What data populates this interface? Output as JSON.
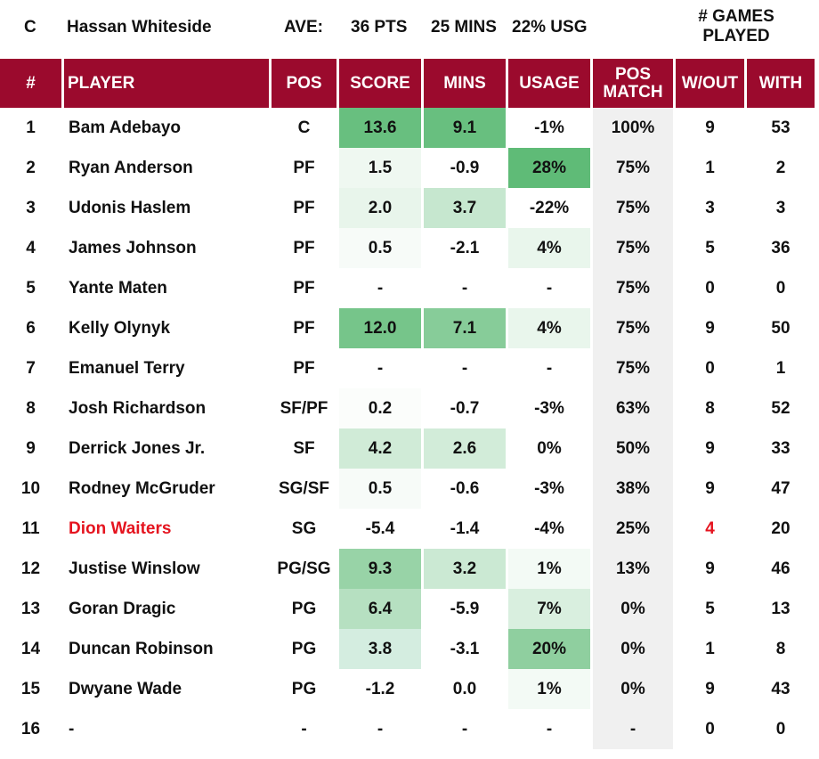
{
  "header": {
    "pos": "C",
    "player": "Hassan Whiteside",
    "ave_label": "AVE:",
    "pts": "36 PTS",
    "mins": "25 MINS",
    "usg": "22% USG",
    "games_played_line1": "# GAMES",
    "games_played_line2": "PLAYED"
  },
  "columns": [
    "#",
    "PLAYER",
    "POS",
    "SCORE",
    "MINS",
    "USAGE",
    "POS MATCH",
    "W/OUT",
    "WITH"
  ],
  "rows": [
    {
      "n": "1",
      "player": "Bam Adebayo",
      "pos": "C",
      "score": "13.6",
      "mins": "9.1",
      "usage": "-1%",
      "pos_match": "100%",
      "wout": "9",
      "with": "53",
      "score_bg": "#68bf7f",
      "mins_bg": "#68bf7f",
      "usage_bg": "",
      "highlight": false
    },
    {
      "n": "2",
      "player": "Ryan Anderson",
      "pos": "PF",
      "score": "1.5",
      "mins": "-0.9",
      "usage": "28%",
      "pos_match": "75%",
      "wout": "1",
      "with": "2",
      "score_bg": "#eff8f1",
      "mins_bg": "",
      "usage_bg": "#5fbb77",
      "highlight": false
    },
    {
      "n": "3",
      "player": "Udonis Haslem",
      "pos": "PF",
      "score": "2.0",
      "mins": "3.7",
      "usage": "-22%",
      "pos_match": "75%",
      "wout": "3",
      "with": "3",
      "score_bg": "#e8f5eb",
      "mins_bg": "#c6e7cf",
      "usage_bg": "",
      "highlight": false
    },
    {
      "n": "4",
      "player": "James Johnson",
      "pos": "PF",
      "score": "0.5",
      "mins": "-2.1",
      "usage": "4%",
      "pos_match": "75%",
      "wout": "5",
      "with": "36",
      "score_bg": "#f7fbf8",
      "mins_bg": "",
      "usage_bg": "#e9f6ec",
      "highlight": false
    },
    {
      "n": "5",
      "player": "Yante Maten",
      "pos": "PF",
      "score": "-",
      "mins": "-",
      "usage": "-",
      "pos_match": "75%",
      "wout": "0",
      "with": "0",
      "score_bg": "",
      "mins_bg": "",
      "usage_bg": "",
      "highlight": false
    },
    {
      "n": "6",
      "player": "Kelly Olynyk",
      "pos": "PF",
      "score": "12.0",
      "mins": "7.1",
      "usage": "4%",
      "pos_match": "75%",
      "wout": "9",
      "with": "50",
      "score_bg": "#76c58a",
      "mins_bg": "#87cc99",
      "usage_bg": "#e9f6ec",
      "highlight": false
    },
    {
      "n": "7",
      "player": "Emanuel Terry",
      "pos": "PF",
      "score": "-",
      "mins": "-",
      "usage": "-",
      "pos_match": "75%",
      "wout": "0",
      "with": "1",
      "score_bg": "",
      "mins_bg": "",
      "usage_bg": "",
      "highlight": false
    },
    {
      "n": "8",
      "player": "Josh Richardson",
      "pos": "SF/PF",
      "score": "0.2",
      "mins": "-0.7",
      "usage": "-3%",
      "pos_match": "63%",
      "wout": "8",
      "with": "52",
      "score_bg": "#fbfdfb",
      "mins_bg": "",
      "usage_bg": "",
      "highlight": false
    },
    {
      "n": "9",
      "player": "Derrick Jones Jr.",
      "pos": "SF",
      "score": "4.2",
      "mins": "2.6",
      "usage": "0%",
      "pos_match": "50%",
      "wout": "9",
      "with": "33",
      "score_bg": "#d0ebd7",
      "mins_bg": "#d2ecd9",
      "usage_bg": "",
      "highlight": false
    },
    {
      "n": "10",
      "player": "Rodney McGruder",
      "pos": "SG/SF",
      "score": "0.5",
      "mins": "-0.6",
      "usage": "-3%",
      "pos_match": "38%",
      "wout": "9",
      "with": "47",
      "score_bg": "#f7fbf8",
      "mins_bg": "",
      "usage_bg": "",
      "highlight": false
    },
    {
      "n": "11",
      "player": "Dion Waiters",
      "pos": "SG",
      "score": "-5.4",
      "mins": "-1.4",
      "usage": "-4%",
      "pos_match": "25%",
      "wout": "4",
      "with": "20",
      "score_bg": "",
      "mins_bg": "",
      "usage_bg": "",
      "highlight": true
    },
    {
      "n": "12",
      "player": "Justise Winslow",
      "pos": "PG/SG",
      "score": "9.3",
      "mins": "3.2",
      "usage": "1%",
      "pos_match": "13%",
      "wout": "9",
      "with": "46",
      "score_bg": "#98d3a7",
      "mins_bg": "#cbe9d3",
      "usage_bg": "#f3faf5",
      "highlight": false
    },
    {
      "n": "13",
      "player": "Goran Dragic",
      "pos": "PG",
      "score": "6.4",
      "mins": "-5.9",
      "usage": "7%",
      "pos_match": "0%",
      "wout": "5",
      "with": "13",
      "score_bg": "#b6e0c1",
      "mins_bg": "",
      "usage_bg": "#d9efdf",
      "highlight": false
    },
    {
      "n": "14",
      "player": "Duncan Robinson",
      "pos": "PG",
      "score": "3.8",
      "mins": "-3.1",
      "usage": "20%",
      "pos_match": "0%",
      "wout": "1",
      "with": "8",
      "score_bg": "#d4ede0",
      "mins_bg": "",
      "usage_bg": "#8fcf9f",
      "highlight": false
    },
    {
      "n": "15",
      "player": "Dwyane Wade",
      "pos": "PG",
      "score": "-1.2",
      "mins": "0.0",
      "usage": "1%",
      "pos_match": "0%",
      "wout": "9",
      "with": "43",
      "score_bg": "",
      "mins_bg": "",
      "usage_bg": "#f3faf5",
      "highlight": false
    },
    {
      "n": "16",
      "player": "-",
      "pos": "-",
      "score": "-",
      "mins": "-",
      "usage": "-",
      "pos_match": "-",
      "wout": "0",
      "with": "0",
      "score_bg": "",
      "mins_bg": "",
      "usage_bg": "",
      "highlight": false
    }
  ]
}
